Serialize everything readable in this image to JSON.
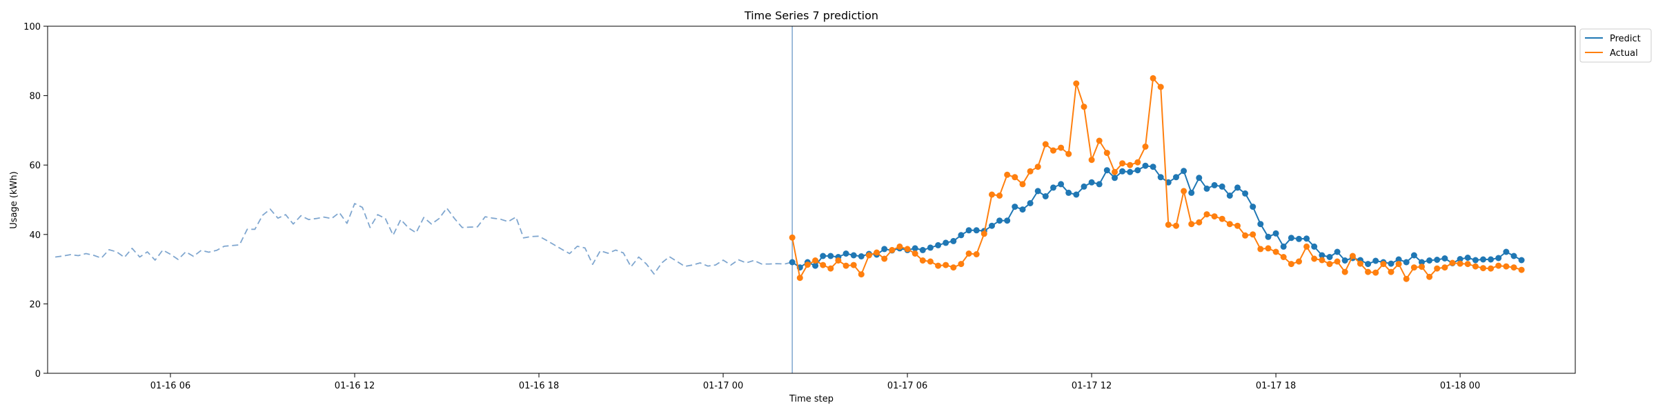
{
  "chart_data": {
    "type": "line",
    "title": "Time Series 7 prediction",
    "xlabel": "Time step",
    "ylabel": "Usage (kWh)",
    "ylim": [
      0,
      100
    ],
    "yticks": [
      0,
      20,
      40,
      60,
      80,
      100
    ],
    "x_unit": "15-minute steps from 01-16 00:00",
    "xlim_steps": [
      8,
      207
    ],
    "xticks": [
      {
        "label": "01-16 06",
        "step": 24
      },
      {
        "label": "01-16 12",
        "step": 48
      },
      {
        "label": "01-16 18",
        "step": 72
      },
      {
        "label": "01-17 00",
        "step": 96
      },
      {
        "label": "01-17 06",
        "step": 120
      },
      {
        "label": "01-17 12",
        "step": 144
      },
      {
        "label": "01-17 18",
        "step": 168
      },
      {
        "label": "01-18 00",
        "step": 192
      }
    ],
    "forecast_start_step": 105,
    "legend": {
      "position": "outside-top-right",
      "entries": [
        "Predict",
        "Actual"
      ]
    },
    "colors": {
      "Predict": "#1f77b4",
      "Actual": "#ff7f0e",
      "history": "#7fa6cf",
      "divider": "#7fa6cf"
    },
    "series": [
      {
        "name": "history",
        "style": "dashed",
        "start_step": 9,
        "values": [
          33.5,
          33.8,
          34.2,
          33.9,
          34.5,
          34.0,
          33.2,
          35.6,
          35.0,
          33.4,
          36.0,
          33.5,
          35.0,
          32.6,
          35.5,
          34.3,
          32.8,
          35.0,
          33.7,
          35.4,
          34.9,
          35.4,
          36.6,
          36.8,
          37.0,
          41.5,
          41.5,
          45.5,
          47.3,
          44.7,
          45.7,
          43.0,
          45.4,
          44.3,
          44.6,
          45.0,
          44.6,
          46.3,
          43.2,
          48.9,
          47.8,
          42.0,
          45.7,
          44.6,
          39.8,
          44.3,
          41.9,
          40.5,
          44.9,
          43.0,
          44.6,
          47.6,
          44.6,
          42.0,
          42.1,
          42.2,
          45.1,
          44.7,
          44.4,
          43.7,
          45.0,
          39.0,
          39.4,
          39.5,
          38.3,
          37.0,
          35.7,
          34.5,
          36.6,
          36.1,
          31.4,
          35.3,
          34.6,
          35.5,
          34.7,
          30.7,
          33.5,
          31.5,
          28.6,
          31.8,
          33.6,
          32.2,
          30.8,
          31.2,
          31.8,
          30.9,
          31.2,
          32.6,
          31.2,
          32.7,
          31.8,
          32.5,
          31.5,
          31.5,
          31.6,
          31.5,
          32.0
        ]
      },
      {
        "name": "Predict",
        "style": "solid-markers",
        "start_step": 105,
        "values": [
          32.0,
          30.5,
          32.0,
          31.0,
          33.8,
          33.8,
          33.5,
          34.5,
          34.0,
          33.7,
          34.4,
          34.2,
          35.8,
          35.4,
          36.0,
          35.5,
          36.0,
          35.5,
          36.2,
          36.9,
          37.6,
          38.1,
          39.8,
          41.2,
          41.2,
          41.0,
          42.5,
          44.0,
          44.0,
          48.0,
          47.2,
          49.0,
          52.5,
          51.0,
          53.5,
          54.5,
          52.0,
          51.5,
          53.8,
          55.0,
          54.5,
          58.5,
          56.3,
          58.2,
          58.0,
          58.5,
          59.8,
          59.5,
          56.5,
          55.0,
          56.5,
          58.3,
          52.0,
          56.3,
          53.2,
          54.2,
          53.8,
          51.2,
          53.5,
          51.8,
          48.0,
          43.0,
          39.3,
          40.3,
          36.5,
          39.0,
          38.7,
          38.8,
          36.5,
          34.0,
          33.5,
          35.0,
          32.5,
          33.2,
          32.6,
          31.5,
          32.4,
          32.0,
          31.6,
          32.8,
          32.0,
          34.0,
          32.0,
          32.5,
          32.7,
          33.1,
          31.7,
          32.9,
          33.3,
          32.6,
          32.8,
          32.8,
          33.2,
          35.0,
          33.8,
          32.6
        ]
      },
      {
        "name": "Actual",
        "style": "solid-markers",
        "start_step": 105,
        "values": [
          39.1,
          27.5,
          31.3,
          32.5,
          31.2,
          30.2,
          32.5,
          31.0,
          31.2,
          28.5,
          34.0,
          34.8,
          33.0,
          35.5,
          36.5,
          35.8,
          34.5,
          32.5,
          32.2,
          31.0,
          31.2,
          30.5,
          31.5,
          34.5,
          34.3,
          40.2,
          51.5,
          51.2,
          57.2,
          56.5,
          54.5,
          58.2,
          59.5,
          66.0,
          64.2,
          65.0,
          63.2,
          83.5,
          76.8,
          61.5,
          67.0,
          63.5,
          58.0,
          60.5,
          60.0,
          60.8,
          65.3,
          85.0,
          82.5,
          42.8,
          42.5,
          52.5,
          43.0,
          43.5,
          45.8,
          45.2,
          44.5,
          43.0,
          42.5,
          39.7,
          40.0,
          35.8,
          36.0,
          35.0,
          33.5,
          31.5,
          32.2,
          36.5,
          33.0,
          32.6,
          31.5,
          32.2,
          29.2,
          33.8,
          31.6,
          29.2,
          29.0,
          31.5,
          29.2,
          31.5,
          27.2,
          30.5,
          30.7,
          27.8,
          30.2,
          30.5,
          31.8,
          31.6,
          31.5,
          30.8,
          30.3,
          30.2,
          31.0,
          30.8,
          30.5,
          29.8
        ]
      }
    ]
  }
}
